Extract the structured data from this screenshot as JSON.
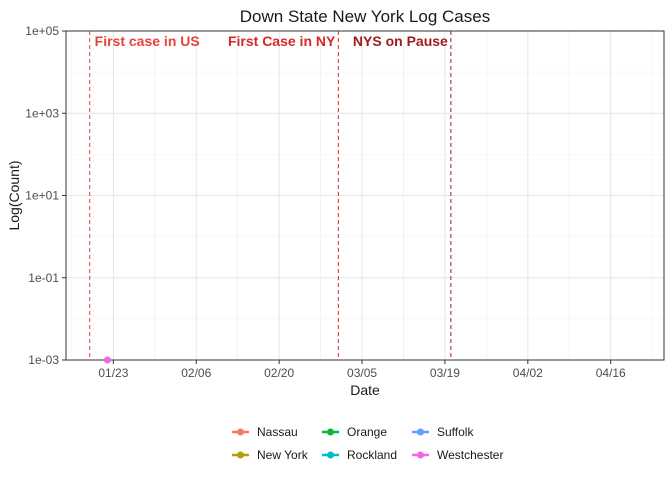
{
  "chart_data": {
    "type": "line",
    "title": "Down State New York Log Cases",
    "xlabel": "Date",
    "ylabel": "Log(Count)",
    "x_range": [
      "2020-01-15",
      "2020-04-25"
    ],
    "x_ticks": [
      {
        "date": "2020-01-23",
        "label": "01/23"
      },
      {
        "date": "2020-02-06",
        "label": "02/06"
      },
      {
        "date": "2020-02-20",
        "label": "02/20"
      },
      {
        "date": "2020-03-05",
        "label": "03/05"
      },
      {
        "date": "2020-03-19",
        "label": "03/19"
      },
      {
        "date": "2020-04-02",
        "label": "04/02"
      },
      {
        "date": "2020-04-16",
        "label": "04/16"
      }
    ],
    "y_scale": "log10",
    "ylim": [
      0.001,
      100000
    ],
    "y_ticks": [
      {
        "value": 100000,
        "label": "1e+05"
      },
      {
        "value": 1000,
        "label": "1e+03"
      },
      {
        "value": 10,
        "label": "1e+01"
      },
      {
        "value": 0.1,
        "label": "1e-01"
      },
      {
        "value": 0.001,
        "label": "1e-03"
      }
    ],
    "grid": true,
    "vlines": [
      {
        "date": "2020-01-19",
        "label": "First case in US",
        "color": "#e8423c",
        "label_side": "right"
      },
      {
        "date": "2020-03-01",
        "label": "First Case in NY",
        "color": "#d62728",
        "label_side": "left"
      },
      {
        "date": "2020-03-20",
        "label": "NYS on Pause",
        "color": "#a01c1c",
        "label_side": "left"
      }
    ],
    "series": [
      {
        "name": "Nassau",
        "color": "#F8766D",
        "points": []
      },
      {
        "name": "New York",
        "color": "#B79F00",
        "points": []
      },
      {
        "name": "Orange",
        "color": "#00BA38",
        "points": []
      },
      {
        "name": "Rockland",
        "color": "#00BFC4",
        "points": []
      },
      {
        "name": "Suffolk",
        "color": "#619CFF",
        "points": []
      },
      {
        "name": "Westchester",
        "color": "#F564E3",
        "points": [
          {
            "x": "2020-01-22",
            "y": 0.001
          }
        ]
      }
    ],
    "legend_position": "bottom"
  }
}
